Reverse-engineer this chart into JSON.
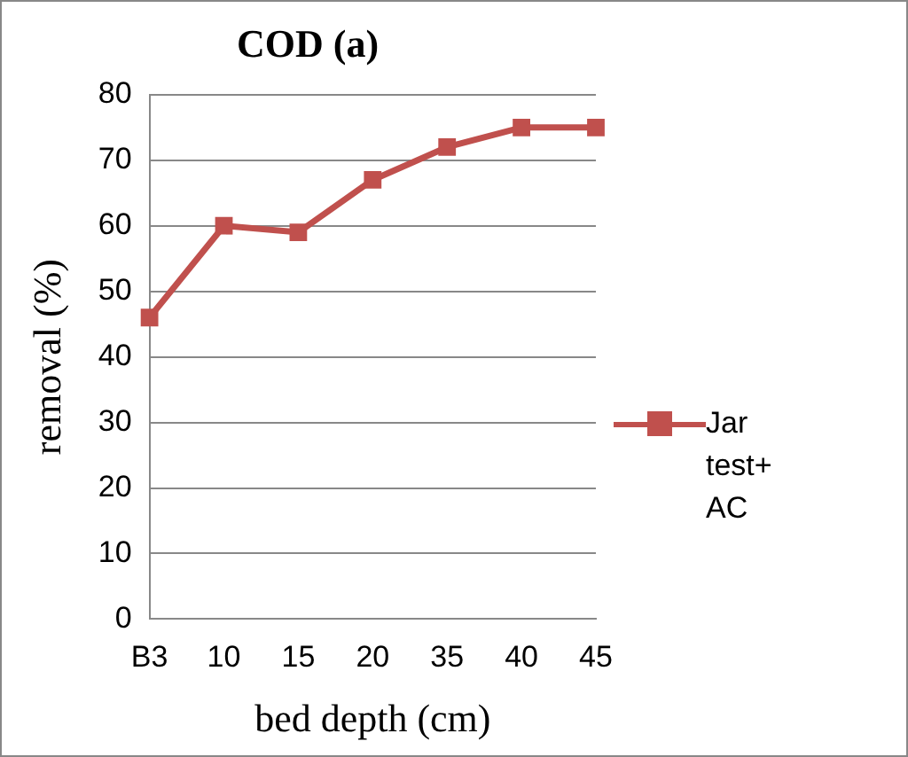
{
  "chart_data": {
    "type": "line",
    "title": "COD (a)",
    "xlabel": "bed depth (cm)",
    "ylabel": "removal (%)",
    "categories": [
      "B3",
      "10",
      "15",
      "20",
      "35",
      "40",
      "45"
    ],
    "series": [
      {
        "name": "Jar test+ AC",
        "color": "#c0504d",
        "values": [
          46,
          60,
          59,
          67,
          72,
          75,
          75
        ]
      }
    ],
    "ylim": [
      0,
      80
    ],
    "yticks": [
      0,
      10,
      20,
      30,
      40,
      50,
      60,
      70,
      80
    ],
    "grid": "y",
    "legend": "right",
    "marker": "square",
    "line_style": "solid"
  }
}
